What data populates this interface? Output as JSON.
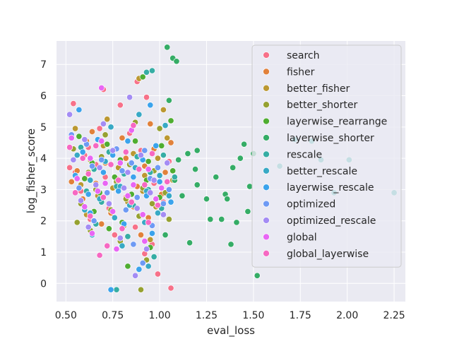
{
  "chart_data": {
    "type": "scatter",
    "title": "",
    "xlabel": "eval_loss",
    "ylabel": "log_fisher_score",
    "xlim": [
      0.45,
      2.31
    ],
    "ylim": [
      -0.58,
      7.75
    ],
    "xticks": [
      0.5,
      0.75,
      1.0,
      1.25,
      1.5,
      1.75,
      2.0,
      2.25
    ],
    "xtick_labels": [
      "0.50",
      "0.75",
      "1.00",
      "1.25",
      "1.50",
      "1.75",
      "2.00",
      "2.25"
    ],
    "yticks": [
      0,
      1,
      2,
      3,
      4,
      5,
      6,
      7
    ],
    "ytick_labels": [
      "0",
      "1",
      "2",
      "3",
      "4",
      "5",
      "6",
      "7"
    ],
    "grid": true,
    "background": "#eaeaf2",
    "legend_position": "upper-right",
    "series": [
      {
        "name": "search",
        "color": "#f77189",
        "points": [
          [
            0.54,
            5.75
          ],
          [
            0.62,
            4.35
          ],
          [
            0.7,
            6.2
          ],
          [
            0.79,
            5.7
          ],
          [
            0.88,
            6.45
          ],
          [
            0.93,
            5.95
          ],
          [
            0.66,
            3.8
          ],
          [
            0.58,
            2.95
          ],
          [
            0.71,
            3.4
          ],
          [
            0.84,
            4.8
          ],
          [
            0.97,
            3.2
          ],
          [
            1.02,
            2.6
          ],
          [
            0.63,
            2.05
          ],
          [
            0.76,
            1.55
          ],
          [
            0.92,
            0.95
          ],
          [
            0.99,
            0.3
          ],
          [
            1.06,
            -0.15
          ],
          [
            0.55,
            3.55
          ],
          [
            0.82,
            2.75
          ],
          [
            0.68,
            4.95
          ],
          [
            0.9,
            4.25
          ],
          [
            1.05,
            3.9
          ],
          [
            0.73,
            2.4
          ],
          [
            0.6,
            4.1
          ],
          [
            0.87,
            1.8
          ],
          [
            0.96,
            1.25
          ],
          [
            0.78,
            3.05
          ],
          [
            0.52,
            3.7
          ]
        ]
      },
      {
        "name": "fisher",
        "color": "#e1813b",
        "points": [
          [
            0.56,
            3.6
          ],
          [
            0.61,
            4.55
          ],
          [
            0.66,
            3.2
          ],
          [
            0.71,
            3.85
          ],
          [
            0.77,
            3.35
          ],
          [
            0.82,
            4.0
          ],
          [
            0.88,
            3.1
          ],
          [
            0.92,
            3.75
          ],
          [
            0.97,
            4.3
          ],
          [
            1.03,
            3.55
          ],
          [
            0.59,
            2.7
          ],
          [
            0.74,
            2.25
          ],
          [
            0.86,
            2.45
          ],
          [
            0.94,
            2.1
          ],
          [
            1.01,
            2.85
          ],
          [
            0.64,
            4.85
          ],
          [
            0.8,
            4.65
          ],
          [
            0.95,
            5.1
          ],
          [
            1.06,
            4.5
          ],
          [
            0.69,
            1.9
          ],
          [
            0.9,
            1.55
          ],
          [
            0.53,
            3.25
          ]
        ]
      },
      {
        "name": "better_fisher",
        "color": "#bb9832",
        "points": [
          [
            0.55,
            4.95
          ],
          [
            0.63,
            3.95
          ],
          [
            0.7,
            4.4
          ],
          [
            0.78,
            3.7
          ],
          [
            0.86,
            4.15
          ],
          [
            0.92,
            3.45
          ],
          [
            0.99,
            4.0
          ],
          [
            1.04,
            4.65
          ],
          [
            0.58,
            3.15
          ],
          [
            0.67,
            2.8
          ],
          [
            0.75,
            3.05
          ],
          [
            0.83,
            2.6
          ],
          [
            0.91,
            2.95
          ],
          [
            0.98,
            2.45
          ],
          [
            1.07,
            3.3
          ],
          [
            0.61,
            2.2
          ],
          [
            0.81,
            1.85
          ],
          [
            0.95,
            1.4
          ],
          [
            0.89,
            6.55
          ],
          [
            0.72,
            5.25
          ],
          [
            1.02,
            5.55
          ]
        ]
      },
      {
        "name": "better_shorter",
        "color": "#96a131",
        "points": [
          [
            0.54,
            4.3
          ],
          [
            0.62,
            3.55
          ],
          [
            0.69,
            4.05
          ],
          [
            0.77,
            3.25
          ],
          [
            0.84,
            3.8
          ],
          [
            0.91,
            3.05
          ],
          [
            0.97,
            3.6
          ],
          [
            1.03,
            2.9
          ],
          [
            0.58,
            2.55
          ],
          [
            0.66,
            3.0
          ],
          [
            0.74,
            2.35
          ],
          [
            0.82,
            2.7
          ],
          [
            0.89,
            2.15
          ],
          [
            0.96,
            2.55
          ],
          [
            1.05,
            2.05
          ],
          [
            0.63,
            1.7
          ],
          [
            0.79,
            1.35
          ],
          [
            0.93,
            0.75
          ],
          [
            0.9,
            -0.2
          ],
          [
            0.87,
            5.15
          ],
          [
            0.71,
            4.75
          ],
          [
            1.0,
            4.95
          ],
          [
            0.56,
            1.95
          ]
        ]
      },
      {
        "name": "layerwise_rearrange",
        "color": "#4fad31",
        "points": [
          [
            0.57,
            4.7
          ],
          [
            0.64,
            3.85
          ],
          [
            0.72,
            4.45
          ],
          [
            0.79,
            3.95
          ],
          [
            0.87,
            4.55
          ],
          [
            0.94,
            3.9
          ],
          [
            1.01,
            4.4
          ],
          [
            1.07,
            3.6
          ],
          [
            0.6,
            3.35
          ],
          [
            0.68,
            2.9
          ],
          [
            0.76,
            3.4
          ],
          [
            0.85,
            2.85
          ],
          [
            0.93,
            3.3
          ],
          [
            1.0,
            2.75
          ],
          [
            0.65,
            2.3
          ],
          [
            0.8,
            1.95
          ],
          [
            0.95,
            1.15
          ],
          [
            0.91,
            6.6
          ],
          [
            1.06,
            5.2
          ],
          [
            0.83,
            0.55
          ],
          [
            0.73,
            1.75
          ]
        ]
      },
      {
        "name": "layerwise_shorter",
        "color": "#35ac66",
        "points": [
          [
            1.04,
            7.55
          ],
          [
            1.07,
            7.2
          ],
          [
            1.09,
            7.1
          ],
          [
            1.05,
            5.85
          ],
          [
            1.1,
            3.95
          ],
          [
            1.15,
            4.15
          ],
          [
            1.2,
            4.25
          ],
          [
            1.2,
            3.15
          ],
          [
            1.25,
            2.7
          ],
          [
            1.27,
            2.05
          ],
          [
            1.33,
            2.05
          ],
          [
            1.35,
            2.85
          ],
          [
            1.36,
            2.7
          ],
          [
            1.38,
            1.25
          ],
          [
            1.39,
            3.7
          ],
          [
            1.41,
            1.95
          ],
          [
            1.43,
            4.0
          ],
          [
            1.45,
            4.45
          ],
          [
            1.47,
            2.3
          ],
          [
            1.48,
            3.1
          ],
          [
            1.5,
            4.15
          ],
          [
            1.52,
            0.25
          ],
          [
            1.12,
            2.8
          ],
          [
            1.16,
            1.3
          ],
          [
            1.19,
            3.65
          ],
          [
            1.3,
            3.4
          ],
          [
            1.08,
            3.3
          ],
          [
            1.03,
            1.55
          ]
        ]
      },
      {
        "name": "rescale",
        "color": "#36ada4",
        "points": [
          [
            0.58,
            4.35
          ],
          [
            0.65,
            3.65
          ],
          [
            0.73,
            4.2
          ],
          [
            0.81,
            3.5
          ],
          [
            0.88,
            4.05
          ],
          [
            0.95,
            3.55
          ],
          [
            1.02,
            4.1
          ],
          [
            1.08,
            3.4
          ],
          [
            0.61,
            2.95
          ],
          [
            0.69,
            2.6
          ],
          [
            0.77,
            3.1
          ],
          [
            0.86,
            2.5
          ],
          [
            0.94,
            3.0
          ],
          [
            1.01,
            2.4
          ],
          [
            0.66,
            1.9
          ],
          [
            0.83,
            1.5
          ],
          [
            0.97,
            0.85
          ],
          [
            1.64,
            3.75
          ],
          [
            1.72,
            4.6
          ],
          [
            1.81,
            4.55
          ],
          [
            1.86,
            3.95
          ],
          [
            1.93,
            2.9
          ],
          [
            2.01,
            3.95
          ],
          [
            2.25,
            2.9
          ],
          [
            0.93,
            6.75
          ],
          [
            0.96,
            6.8
          ],
          [
            0.77,
            -0.2
          ]
        ]
      },
      {
        "name": "better_rescale",
        "color": "#38a9c5",
        "points": [
          [
            0.56,
            4.1
          ],
          [
            0.63,
            3.3
          ],
          [
            0.71,
            3.9
          ],
          [
            0.79,
            3.1
          ],
          [
            0.87,
            3.7
          ],
          [
            0.93,
            2.95
          ],
          [
            1.0,
            3.45
          ],
          [
            1.05,
            2.8
          ],
          [
            0.6,
            2.35
          ],
          [
            0.68,
            2.7
          ],
          [
            0.76,
            2.1
          ],
          [
            0.84,
            2.5
          ],
          [
            0.92,
            1.95
          ],
          [
            0.99,
            2.25
          ],
          [
            0.64,
            1.55
          ],
          [
            0.8,
            1.2
          ],
          [
            0.94,
            0.55
          ],
          [
            0.89,
            5.4
          ],
          [
            0.74,
            5.0
          ],
          [
            1.03,
            5.05
          ]
        ]
      },
      {
        "name": "layerwise_rescale",
        "color": "#3ba3ec",
        "points": [
          [
            0.55,
            3.45
          ],
          [
            0.62,
            2.85
          ],
          [
            0.7,
            3.55
          ],
          [
            0.78,
            2.95
          ],
          [
            0.86,
            3.4
          ],
          [
            0.93,
            2.8
          ],
          [
            1.0,
            3.25
          ],
          [
            1.06,
            2.6
          ],
          [
            0.59,
            4.2
          ],
          [
            0.67,
            4.6
          ],
          [
            0.75,
            4.1
          ],
          [
            0.83,
            4.55
          ],
          [
            0.91,
            3.95
          ],
          [
            0.98,
            4.4
          ],
          [
            0.63,
            2.25
          ],
          [
            0.81,
            1.9
          ],
          [
            0.96,
            1.6
          ],
          [
            0.74,
            -0.2
          ],
          [
            0.95,
            5.7
          ],
          [
            0.57,
            5.55
          ],
          [
            0.89,
            0.45
          ]
        ]
      },
      {
        "name": "optimized",
        "color": "#6e9af4",
        "points": [
          [
            0.57,
            3.05
          ],
          [
            0.64,
            3.75
          ],
          [
            0.72,
            2.9
          ],
          [
            0.8,
            3.6
          ],
          [
            0.88,
            2.75
          ],
          [
            0.95,
            3.35
          ],
          [
            1.02,
            2.55
          ],
          [
            0.61,
            4.45
          ],
          [
            0.69,
            3.95
          ],
          [
            0.77,
            4.3
          ],
          [
            0.85,
            3.85
          ],
          [
            0.92,
            4.25
          ],
          [
            0.99,
            3.7
          ],
          [
            0.65,
            2.0
          ],
          [
            0.82,
            2.35
          ],
          [
            0.96,
            1.85
          ],
          [
            0.86,
            1.25
          ],
          [
            1.05,
            3.0
          ],
          [
            0.53,
            4.75
          ],
          [
            0.91,
            0.65
          ]
        ]
      },
      {
        "name": "optimized_rescale",
        "color": "#a48cf4",
        "points": [
          [
            0.54,
            3.95
          ],
          [
            0.6,
            4.6
          ],
          [
            0.68,
            3.7
          ],
          [
            0.75,
            4.25
          ],
          [
            0.83,
            3.55
          ],
          [
            0.9,
            4.1
          ],
          [
            0.97,
            3.3
          ],
          [
            1.04,
            3.85
          ],
          [
            0.58,
            2.65
          ],
          [
            0.66,
            3.15
          ],
          [
            0.73,
            2.55
          ],
          [
            0.81,
            3.05
          ],
          [
            0.88,
            2.4
          ],
          [
            0.95,
            2.9
          ],
          [
            1.02,
            2.2
          ],
          [
            0.62,
            1.8
          ],
          [
            0.79,
            1.45
          ],
          [
            0.93,
            1.1
          ],
          [
            0.84,
            5.95
          ],
          [
            0.7,
            5.1
          ],
          [
            0.87,
            0.25
          ],
          [
            0.52,
            5.4
          ]
        ]
      },
      {
        "name": "global",
        "color": "#e866f4",
        "points": [
          [
            0.56,
            3.35
          ],
          [
            0.63,
            4.0
          ],
          [
            0.71,
            3.2
          ],
          [
            0.79,
            3.85
          ],
          [
            0.86,
            3.15
          ],
          [
            0.94,
            3.65
          ],
          [
            1.01,
            3.05
          ],
          [
            0.6,
            2.45
          ],
          [
            0.67,
            2.95
          ],
          [
            0.75,
            2.3
          ],
          [
            0.83,
            2.8
          ],
          [
            0.91,
            2.2
          ],
          [
            0.98,
            2.7
          ],
          [
            0.64,
            1.6
          ],
          [
            0.77,
            1.1
          ],
          [
            0.92,
            1.35
          ],
          [
            0.69,
            4.55
          ],
          [
            0.85,
            4.9
          ],
          [
            0.53,
            4.65
          ],
          [
            0.69,
            6.25
          ]
        ]
      },
      {
        "name": "global_layerwise",
        "color": "#f668c2",
        "points": [
          [
            0.55,
            2.9
          ],
          [
            0.62,
            3.5
          ],
          [
            0.7,
            2.75
          ],
          [
            0.78,
            3.3
          ],
          [
            0.85,
            2.6
          ],
          [
            0.92,
            3.15
          ],
          [
            0.99,
            2.5
          ],
          [
            1.04,
            3.25
          ],
          [
            0.59,
            4.0
          ],
          [
            0.66,
            4.4
          ],
          [
            0.74,
            3.8
          ],
          [
            0.82,
            4.2
          ],
          [
            0.89,
            3.65
          ],
          [
            0.96,
            4.15
          ],
          [
            0.63,
            2.15
          ],
          [
            0.8,
            1.75
          ],
          [
            0.94,
            1.95
          ],
          [
            0.72,
            1.2
          ],
          [
            0.86,
            5.05
          ],
          [
            0.52,
            4.35
          ],
          [
            0.68,
            0.9
          ]
        ]
      }
    ]
  }
}
